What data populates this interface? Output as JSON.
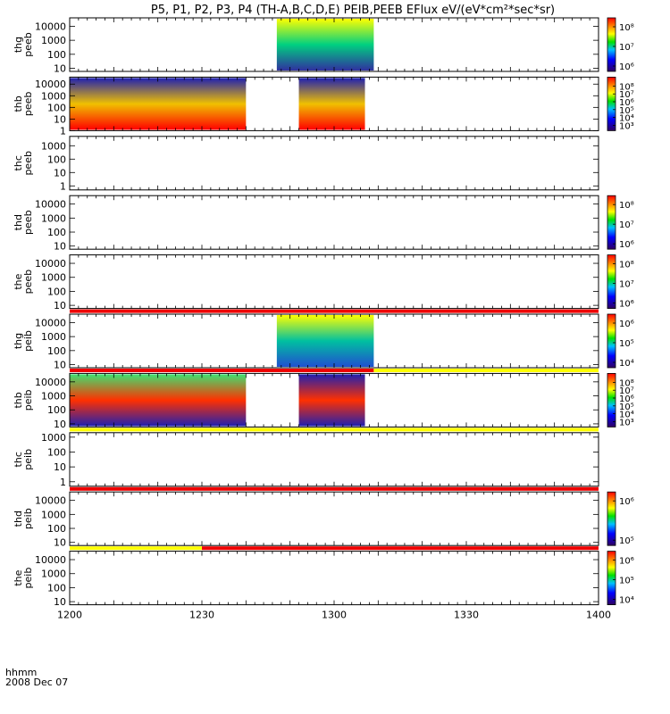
{
  "title": "P5, P1, P2, P3, P4 (TH-A,B,C,D,E) PEIB,PEEB EFlux eV/(eV*cm²*sec*sr)",
  "time_axis": {
    "label_line1": "hhmm",
    "label_line2": "2008 Dec 07",
    "ticks": [
      "1200",
      "1230",
      "1300",
      "1330",
      "1400"
    ]
  },
  "colors": {
    "bar_red": "#ee0000",
    "bar_yellow": "#ffff00"
  },
  "chart_data": [
    {
      "type": "heatmap",
      "probe": "thg",
      "product": "peeb",
      "ylabel": "thg peeb",
      "scale": "log",
      "y_ticks": [
        "10",
        "100",
        "1000",
        "10000"
      ],
      "ylim": [
        6,
        40000
      ],
      "data_segments": [
        {
          "start": "12:47",
          "end": "13:09",
          "color_top": "#ffff00",
          "color_mid": "#00d080",
          "color_bot": "#3030a0"
        }
      ],
      "colorbar": {
        "ticks": [
          "10⁸",
          "10⁷",
          "10⁶"
        ]
      }
    },
    {
      "type": "heatmap",
      "probe": "thb",
      "product": "peeb",
      "ylabel": "thb peeb",
      "scale": "log",
      "y_ticks": [
        "1",
        "10",
        "100",
        "1000",
        "10000"
      ],
      "ylim": [
        1,
        40000
      ],
      "data_segments": [
        {
          "start": "12:00",
          "end": "12:40",
          "color_top": "#2020b0",
          "color_mid": "#f0c000",
          "color_bot": "#ff0000"
        },
        {
          "start": "12:52",
          "end": "13:07",
          "color_top": "#2020b0",
          "color_mid": "#f0c000",
          "color_bot": "#ff0000"
        }
      ],
      "colorbar": {
        "ticks": [
          "10⁸",
          "10⁷",
          "10⁶",
          "10⁵",
          "10⁴",
          "10³"
        ]
      }
    },
    {
      "type": "heatmap",
      "probe": "thc",
      "product": "peeb",
      "ylabel": "thc peeb",
      "scale": "log",
      "y_ticks": [
        "1",
        "10",
        "100",
        "1000"
      ],
      "ylim": [
        0.5,
        5000
      ],
      "data_segments": []
    },
    {
      "type": "heatmap",
      "probe": "thd",
      "product": "peeb",
      "ylabel": "thd peeb",
      "scale": "log",
      "y_ticks": [
        "10",
        "100",
        "1000",
        "10000"
      ],
      "ylim": [
        6,
        40000
      ],
      "data_segments": [],
      "colorbar": {
        "ticks": [
          "10⁸",
          "10⁷",
          "10⁶"
        ]
      }
    },
    {
      "type": "heatmap",
      "probe": "the",
      "product": "peeb",
      "ylabel": "the peeb",
      "scale": "log",
      "y_ticks": [
        "10",
        "100",
        "1000",
        "10000"
      ],
      "ylim": [
        6,
        40000
      ],
      "data_segments": [],
      "colorbar": {
        "ticks": [
          "10⁸",
          "10⁷",
          "10⁶"
        ]
      },
      "bottom_bar": [
        {
          "start": "12:00",
          "end": "14:00",
          "color": "red"
        }
      ]
    },
    {
      "type": "heatmap",
      "probe": "thg",
      "product": "peib",
      "ylabel": "thg peib",
      "scale": "log",
      "y_ticks": [
        "10",
        "100",
        "1000",
        "10000"
      ],
      "ylim": [
        6,
        40000
      ],
      "data_segments": [
        {
          "start": "12:47",
          "end": "13:09",
          "color_top": "#ffff00",
          "color_mid": "#00c0a0",
          "color_bot": "#2050d0"
        }
      ],
      "colorbar": {
        "ticks": [
          "10⁶",
          "10⁵",
          "10⁴"
        ]
      },
      "bottom_bar": [
        {
          "start": "12:00",
          "end": "13:09",
          "color": "red"
        },
        {
          "start": "13:09",
          "end": "14:00",
          "color": "yellow"
        }
      ]
    },
    {
      "type": "heatmap",
      "probe": "thb",
      "product": "peib",
      "ylabel": "thb peib",
      "scale": "log",
      "y_ticks": [
        "10",
        "100",
        "1000",
        "10000"
      ],
      "ylim": [
        6,
        40000
      ],
      "data_segments": [
        {
          "start": "12:00",
          "end": "12:40",
          "color_top": "#40e070",
          "color_mid": "#ff3000",
          "color_bot": "#2020b0"
        },
        {
          "start": "12:52",
          "end": "13:07",
          "color_top": "#2020b0",
          "color_mid": "#ff3000",
          "color_bot": "#2020b0"
        }
      ],
      "colorbar": {
        "ticks": [
          "10⁸",
          "10⁷",
          "10⁶",
          "10⁵",
          "10⁴",
          "10³"
        ]
      },
      "bottom_bar": [
        {
          "start": "12:00",
          "end": "14:00",
          "color": "yellow"
        }
      ]
    },
    {
      "type": "heatmap",
      "probe": "thc",
      "product": "peib",
      "ylabel": "thc peib",
      "scale": "log",
      "y_ticks": [
        "1",
        "10",
        "100",
        "1000"
      ],
      "ylim": [
        0.5,
        2000
      ],
      "data_segments": [],
      "bottom_bar": [
        {
          "start": "12:00",
          "end": "14:00",
          "color": "red"
        }
      ]
    },
    {
      "type": "heatmap",
      "probe": "thd",
      "product": "peib",
      "ylabel": "thd peib",
      "scale": "log",
      "y_ticks": [
        "10",
        "100",
        "1000",
        "10000"
      ],
      "ylim": [
        6,
        40000
      ],
      "data_segments": [],
      "colorbar": {
        "ticks": [
          "10⁶",
          "10⁵"
        ]
      },
      "bottom_bar": [
        {
          "start": "12:00",
          "end": "12:30",
          "color": "yellow"
        },
        {
          "start": "12:30",
          "end": "14:00",
          "color": "red"
        }
      ]
    },
    {
      "type": "heatmap",
      "probe": "the",
      "product": "peib",
      "ylabel": "the peib",
      "scale": "log",
      "y_ticks": [
        "10",
        "100",
        "1000",
        "10000"
      ],
      "ylim": [
        6,
        40000
      ],
      "data_segments": [],
      "colorbar": {
        "ticks": [
          "10⁶",
          "10⁵",
          "10⁴"
        ]
      }
    }
  ]
}
